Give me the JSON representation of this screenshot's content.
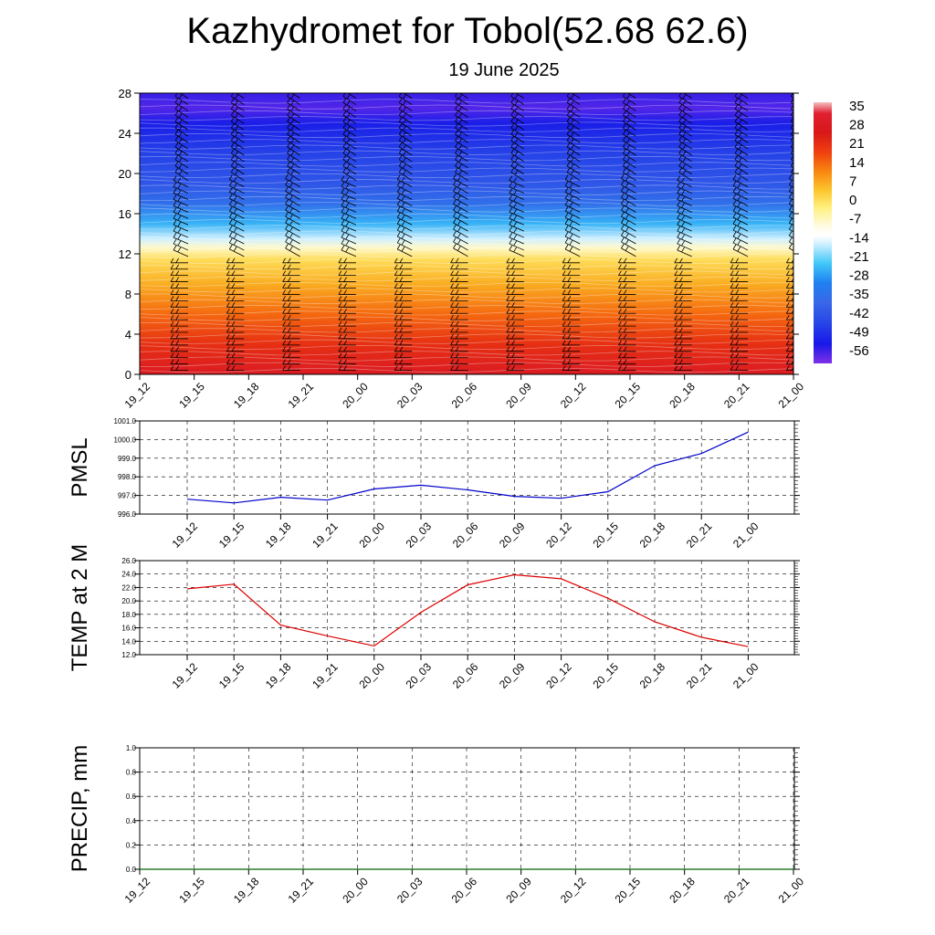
{
  "header": {
    "title": "Kazhydromet for Tobol(52.68 62.6)",
    "subtitle": "19 June 2025"
  },
  "chart_data": [
    {
      "type": "heatmap",
      "title": "Kazhydromet for Tobol(52.68 62.6)",
      "subtitle": "19 June 2025",
      "x_ticks": [
        "19_12",
        "19_15",
        "19_18",
        "19_21",
        "20_00",
        "20_03",
        "20_06",
        "20_09",
        "20_12",
        "20_15",
        "20_18",
        "20_21",
        "21_00"
      ],
      "y_ticks": [
        0,
        4,
        8,
        12,
        16,
        20,
        24,
        28
      ],
      "ylim": [
        0,
        28
      ],
      "colorbar": {
        "labels": [
          "35",
          "28",
          "21",
          "14",
          "7",
          "0",
          "-7",
          "-14",
          "-21",
          "-28",
          "-35",
          "-42",
          "-49",
          "-56"
        ],
        "stops": [
          {
            "v": 35,
            "c": "#f4c0c0"
          },
          {
            "v": 31,
            "c": "#e02030"
          },
          {
            "v": 24,
            "c": "#d81818"
          },
          {
            "v": 17,
            "c": "#f04010"
          },
          {
            "v": 10,
            "c": "#f88810"
          },
          {
            "v": 3,
            "c": "#fcc830"
          },
          {
            "v": -3,
            "c": "#fff080"
          },
          {
            "v": -10,
            "c": "#fffce8"
          },
          {
            "v": -13,
            "c": "#ffffff"
          },
          {
            "v": -16,
            "c": "#d0f0ff"
          },
          {
            "v": -23,
            "c": "#40c8f8"
          },
          {
            "v": -30,
            "c": "#2080f0"
          },
          {
            "v": -37,
            "c": "#3868e8"
          },
          {
            "v": -44,
            "c": "#2848e8"
          },
          {
            "v": -52,
            "c": "#1818e8"
          },
          {
            "v": -59,
            "c": "#8030e8"
          }
        ]
      },
      "temperature_profile": [
        {
          "h": 0,
          "t": 27
        },
        {
          "h": 3,
          "t": 20
        },
        {
          "h": 6,
          "t": 13
        },
        {
          "h": 9,
          "t": 6
        },
        {
          "h": 11.4,
          "t": 0
        },
        {
          "h": 12.6,
          "t": -8
        },
        {
          "h": 13.5,
          "t": -16
        },
        {
          "h": 15,
          "t": -25
        },
        {
          "h": 17,
          "t": -35
        },
        {
          "h": 19,
          "t": -41
        },
        {
          "h": 22,
          "t": -45
        },
        {
          "h": 25,
          "t": -51
        },
        {
          "h": 26.5,
          "t": -56
        },
        {
          "h": 28,
          "t": -54
        }
      ],
      "wind_barbs": true
    },
    {
      "type": "line",
      "ylabel": "PMSL",
      "categories": [
        "19_12",
        "19_15",
        "19_18",
        "19_21",
        "20_00",
        "20_03",
        "20_06",
        "20_09",
        "20_12",
        "20_15",
        "20_18",
        "20_21",
        "21_00"
      ],
      "values": [
        996.8,
        996.6,
        996.9,
        996.75,
        997.35,
        997.55,
        997.3,
        996.95,
        996.85,
        997.2,
        998.6,
        999.25,
        1000.4
      ],
      "y_ticks": [
        "996.0",
        "997.0",
        "998.0",
        "999.0",
        "1000.0",
        "1001.0"
      ],
      "ylim": [
        996,
        1001
      ],
      "color": "#0000cc",
      "grid": true
    },
    {
      "type": "line",
      "ylabel": "TEMP at 2 M",
      "categories": [
        "19_12",
        "19_15",
        "19_18",
        "19_21",
        "20_00",
        "20_03",
        "20_06",
        "20_09",
        "20_12",
        "20_15",
        "20_18",
        "20_21",
        "21_00"
      ],
      "values": [
        21.8,
        22.5,
        16.4,
        14.8,
        13.3,
        18.3,
        22.4,
        23.9,
        23.3,
        20.4,
        16.9,
        14.6,
        13.2
      ],
      "y_ticks": [
        "12.0",
        "14.0",
        "16.0",
        "18.0",
        "20.0",
        "22.0",
        "24.0",
        "26.0"
      ],
      "ylim": [
        12,
        26
      ],
      "color": "#dd0000",
      "grid": true
    },
    {
      "type": "line",
      "ylabel": "PRECIP, mm",
      "categories": [
        "19_12",
        "19_15",
        "19_18",
        "19_21",
        "20_00",
        "20_03",
        "20_06",
        "20_09",
        "20_12",
        "20_15",
        "20_18",
        "20_21",
        "21_00"
      ],
      "values": [
        0,
        0,
        0,
        0,
        0,
        0,
        0,
        0,
        0,
        0,
        0,
        0,
        0
      ],
      "y_ticks": [
        "0.0",
        "0.2",
        "0.4",
        "0.6",
        "0.8",
        "1.0"
      ],
      "ylim": [
        0,
        1
      ],
      "color": "#006400",
      "grid": true
    }
  ]
}
